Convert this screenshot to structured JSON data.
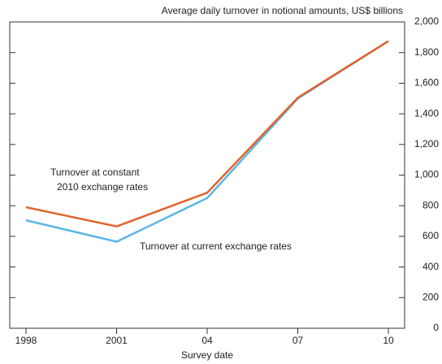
{
  "chart_data": {
    "type": "line",
    "title": "Average daily turnover in notional amounts, US$ billions",
    "x_label": "Survey date",
    "categories": [
      "1998",
      "2001",
      "04",
      "07",
      "10"
    ],
    "series": [
      {
        "label_lines": [
          "Turnover at constant",
          "2010 exchange rates"
        ],
        "color": "#e2622b",
        "values": [
          790,
          665,
          885,
          1505,
          1875
        ]
      },
      {
        "label_lines": [
          "Turnover at current exchange rates"
        ],
        "color": "#5bb6e6",
        "values": [
          705,
          565,
          850,
          1500,
          1875
        ]
      }
    ],
    "ylim": [
      0,
      2000
    ],
    "yticks": [
      0,
      200,
      400,
      600,
      800,
      {
        "value": 1000,
        "label": "1,000"
      },
      {
        "value": 1200,
        "label": "1,200"
      },
      {
        "value": 1400,
        "label": "1,400"
      },
      {
        "value": 1600,
        "label": "1,600"
      },
      {
        "value": 1800,
        "label": "1,800"
      },
      {
        "value": 2000,
        "label": "2,000"
      }
    ]
  }
}
